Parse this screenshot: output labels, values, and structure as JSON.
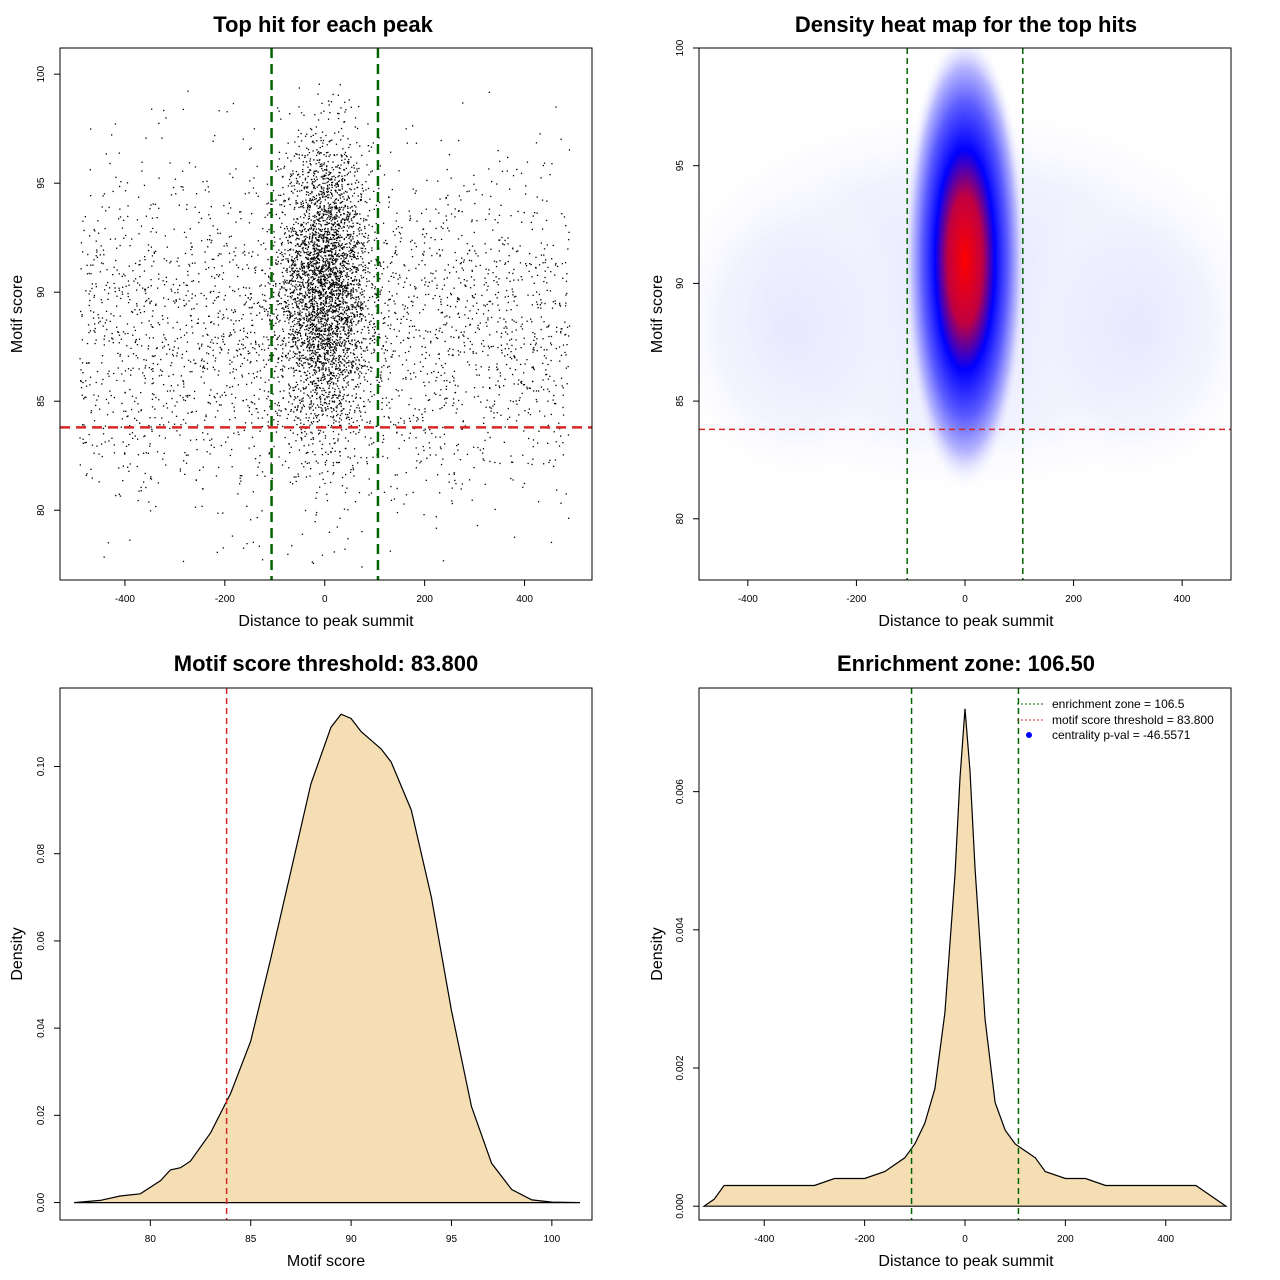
{
  "chart_data": [
    {
      "type": "scatter",
      "title": "Top hit for each peak",
      "xlabel": "Distance to peak summit",
      "ylabel": "Motif score",
      "xlim": [
        -530,
        535
      ],
      "ylim": [
        76.8,
        101.2
      ],
      "x_ticks": [
        -400,
        -200,
        0,
        200,
        400
      ],
      "y_ticks": [
        80,
        85,
        90,
        95,
        100
      ],
      "points_description_center": {
        "x_sd": 45,
        "y_mean": 90.3,
        "y_sd": 3.3,
        "n": 3600
      },
      "points_description_background": {
        "x_range": [
          -490,
          490
        ],
        "y_mean": 88.0,
        "y_sd": 3.8,
        "n": 2800
      },
      "vlines": {
        "values": [
          -106.5,
          106.5
        ],
        "color": "#006400"
      },
      "hline": {
        "value": 83.8,
        "color": "#d62728"
      }
    },
    {
      "type": "heatmap",
      "title": "Density heat map for the top hits",
      "xlabel": "Distance to peak summit",
      "ylabel": "Motif score",
      "xlim": [
        -490,
        490
      ],
      "ylim": [
        77.4,
        100.0
      ],
      "x_ticks": [
        -400,
        -200,
        0,
        200,
        400
      ],
      "y_ticks": [
        80,
        85,
        90,
        95,
        100
      ],
      "peak": {
        "x": 0,
        "y": 91.0
      },
      "vlines": {
        "values": [
          -106.5,
          106.5
        ],
        "color": "#006400"
      },
      "hline": {
        "value": 83.8,
        "color": "#d62728"
      }
    },
    {
      "type": "area",
      "title": "Motif score threshold: 83.800",
      "xlabel": "Motif score",
      "ylabel": "Density",
      "xlim": [
        75.5,
        102.0
      ],
      "ylim": [
        -0.004,
        0.118
      ],
      "x_ticks": [
        80,
        85,
        90,
        95,
        100
      ],
      "y_ticks": [
        0.0,
        0.02,
        0.04,
        0.06,
        0.08,
        0.1
      ],
      "y_tick_labels": [
        "0.00",
        "0.02",
        "0.04",
        "0.06",
        "0.08",
        "0.10"
      ],
      "x": [
        76.2,
        77.5,
        78.5,
        79.5,
        80.5,
        81.0,
        81.5,
        82.0,
        83.0,
        84.0,
        85.0,
        86.0,
        87.0,
        88.0,
        89.0,
        89.5,
        90.0,
        90.5,
        91.0,
        91.5,
        92.0,
        93.0,
        94.0,
        95.0,
        96.0,
        97.0,
        98.0,
        99.0,
        100.0,
        101.4
      ],
      "values": [
        0.0,
        0.0005,
        0.0015,
        0.002,
        0.005,
        0.0075,
        0.008,
        0.0095,
        0.016,
        0.025,
        0.037,
        0.056,
        0.076,
        0.096,
        0.109,
        0.112,
        0.111,
        0.108,
        0.106,
        0.104,
        0.101,
        0.09,
        0.07,
        0.044,
        0.022,
        0.009,
        0.003,
        0.0006,
        0.0001,
        0.0
      ],
      "fill": "#f5deb3",
      "vline": {
        "value": 83.8,
        "color": "#d62728"
      }
    },
    {
      "type": "area",
      "title": "Enrichment zone: 106.50",
      "xlabel": "Distance to peak summit",
      "ylabel": "Density",
      "xlim": [
        -530,
        530
      ],
      "ylim": [
        -0.0002,
        0.0075
      ],
      "x_ticks": [
        -400,
        -200,
        0,
        200,
        400
      ],
      "y_ticks": [
        0.0,
        0.002,
        0.004,
        0.006
      ],
      "y_tick_labels": [
        "0.000",
        "0.002",
        "0.004",
        "0.006"
      ],
      "x": [
        -520,
        -500,
        -480,
        -460,
        -440,
        -400,
        -350,
        -300,
        -260,
        -240,
        -200,
        -160,
        -120,
        -100,
        -80,
        -60,
        -40,
        -20,
        -10,
        0,
        10,
        20,
        40,
        60,
        80,
        100,
        120,
        140,
        160,
        200,
        240,
        280,
        320,
        360,
        400,
        440,
        460,
        480,
        500,
        520
      ],
      "values": [
        0.0,
        0.0001,
        0.0003,
        0.0003,
        0.0003,
        0.0003,
        0.0003,
        0.0003,
        0.0004,
        0.0004,
        0.0004,
        0.0005,
        0.0007,
        0.0009,
        0.0012,
        0.0017,
        0.0028,
        0.0048,
        0.0062,
        0.0072,
        0.0063,
        0.0049,
        0.0027,
        0.0015,
        0.0011,
        0.0009,
        0.0008,
        0.0007,
        0.0005,
        0.0004,
        0.0004,
        0.0003,
        0.0003,
        0.0003,
        0.0003,
        0.0003,
        0.0003,
        0.0002,
        0.0001,
        0.0
      ],
      "fill": "#f5deb3",
      "vlines": {
        "values": [
          -106.5,
          106.5
        ],
        "color": "#006400"
      },
      "legend_placement": "top-right",
      "legend": [
        {
          "label": "enrichment zone = 106.5",
          "style": "dotted-line",
          "color": "#006400"
        },
        {
          "label": "motif score threshold = 83.800",
          "style": "dotted-line",
          "color": "#d62728"
        },
        {
          "label": "centrality p-val = -46.5571",
          "style": "point",
          "color": "#0000ff"
        }
      ]
    }
  ]
}
